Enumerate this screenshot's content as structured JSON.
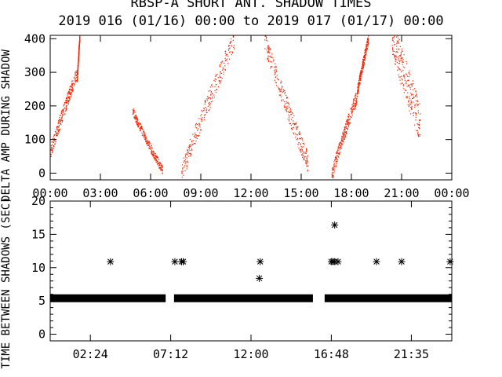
{
  "title_line1": "RBSP-A SHORT ANT. SHADOW TIMES",
  "title_line2": "2019 016 (01/16) 00:00 to 2019 017 (01/17) 00:00",
  "colors": {
    "points": "#ff2200",
    "axes": "#000000",
    "background": "#ffffff"
  },
  "chart_data": [
    {
      "type": "scatter",
      "ylabel": "DELTA AMP DURING SHADOW",
      "x_unit": "hours since 2019-01-16 00:00",
      "xlim": [
        0,
        24
      ],
      "ylim": [
        -20,
        410
      ],
      "x_tick_labels": [
        "00:00",
        "03:00",
        "06:00",
        "09:00",
        "12:00",
        "15:00",
        "18:00",
        "21:00",
        "00:00"
      ],
      "y_tick_labels": [
        "0",
        "100",
        "200",
        "300",
        "400"
      ],
      "y_ticks": [
        0,
        100,
        200,
        300,
        400
      ],
      "x_ticks": [
        0,
        3,
        6,
        9,
        12,
        15,
        18,
        21,
        24
      ],
      "traces": [
        {
          "name": "band-1",
          "x0": 0.0,
          "x1": 1.6,
          "y0": 60,
          "y1": 300,
          "spread": 40
        },
        {
          "name": "band-2",
          "x0": 1.6,
          "x1": 1.75,
          "y0": 280,
          "y1": 410,
          "spread": 20
        },
        {
          "name": "band-3",
          "x0": 4.9,
          "x1": 6.7,
          "y0": 190,
          "y1": 10,
          "spread": 25
        },
        {
          "name": "band-4",
          "x0": 7.8,
          "x1": 11.0,
          "y0": -10,
          "y1": 400,
          "spread": 60
        },
        {
          "name": "band-5",
          "x0": 12.8,
          "x1": 15.4,
          "y0": 400,
          "y1": 30,
          "spread": 60
        },
        {
          "name": "band-6",
          "x0": 16.8,
          "x1": 18.3,
          "y0": -10,
          "y1": 230,
          "spread": 40
        },
        {
          "name": "band-7",
          "x0": 18.3,
          "x1": 19.0,
          "y0": 230,
          "y1": 400,
          "spread": 30
        },
        {
          "name": "band-8",
          "x0": 20.4,
          "x1": 22.1,
          "y0": 420,
          "y1": 150,
          "spread": 120
        }
      ]
    },
    {
      "type": "scatter",
      "ylabel": "TIME BETWEEN SHADOWS (SEC)",
      "x_unit": "hours since 2019-01-16 00:00",
      "xlim": [
        0,
        24
      ],
      "ylim": [
        -1,
        20
      ],
      "x_tick_labels": [
        "02:24",
        "07:12",
        "12:00",
        "16:48",
        "21:35"
      ],
      "x_ticks": [
        2.4,
        7.2,
        12.0,
        16.8,
        21.583
      ],
      "y_tick_labels": [
        "0",
        "5",
        "10",
        "15",
        "20"
      ],
      "y_ticks": [
        0,
        5,
        10,
        15,
        20
      ],
      "baseline_value": 5.4,
      "baseline_segments": [
        [
          0,
          6.9
        ],
        [
          7.4,
          15.7
        ],
        [
          16.4,
          24
        ]
      ],
      "outliers": [
        {
          "x": 3.6,
          "y": 10.9
        },
        {
          "x": 7.45,
          "y": 10.9
        },
        {
          "x": 7.85,
          "y": 10.9
        },
        {
          "x": 7.95,
          "y": 10.9
        },
        {
          "x": 12.55,
          "y": 10.9
        },
        {
          "x": 12.5,
          "y": 8.4
        },
        {
          "x": 16.8,
          "y": 10.9
        },
        {
          "x": 16.9,
          "y": 10.9
        },
        {
          "x": 17.0,
          "y": 10.9
        },
        {
          "x": 17.2,
          "y": 10.9
        },
        {
          "x": 17.0,
          "y": 16.4
        },
        {
          "x": 19.5,
          "y": 10.9
        },
        {
          "x": 21.0,
          "y": 10.9
        },
        {
          "x": 23.9,
          "y": 10.9
        }
      ]
    }
  ]
}
